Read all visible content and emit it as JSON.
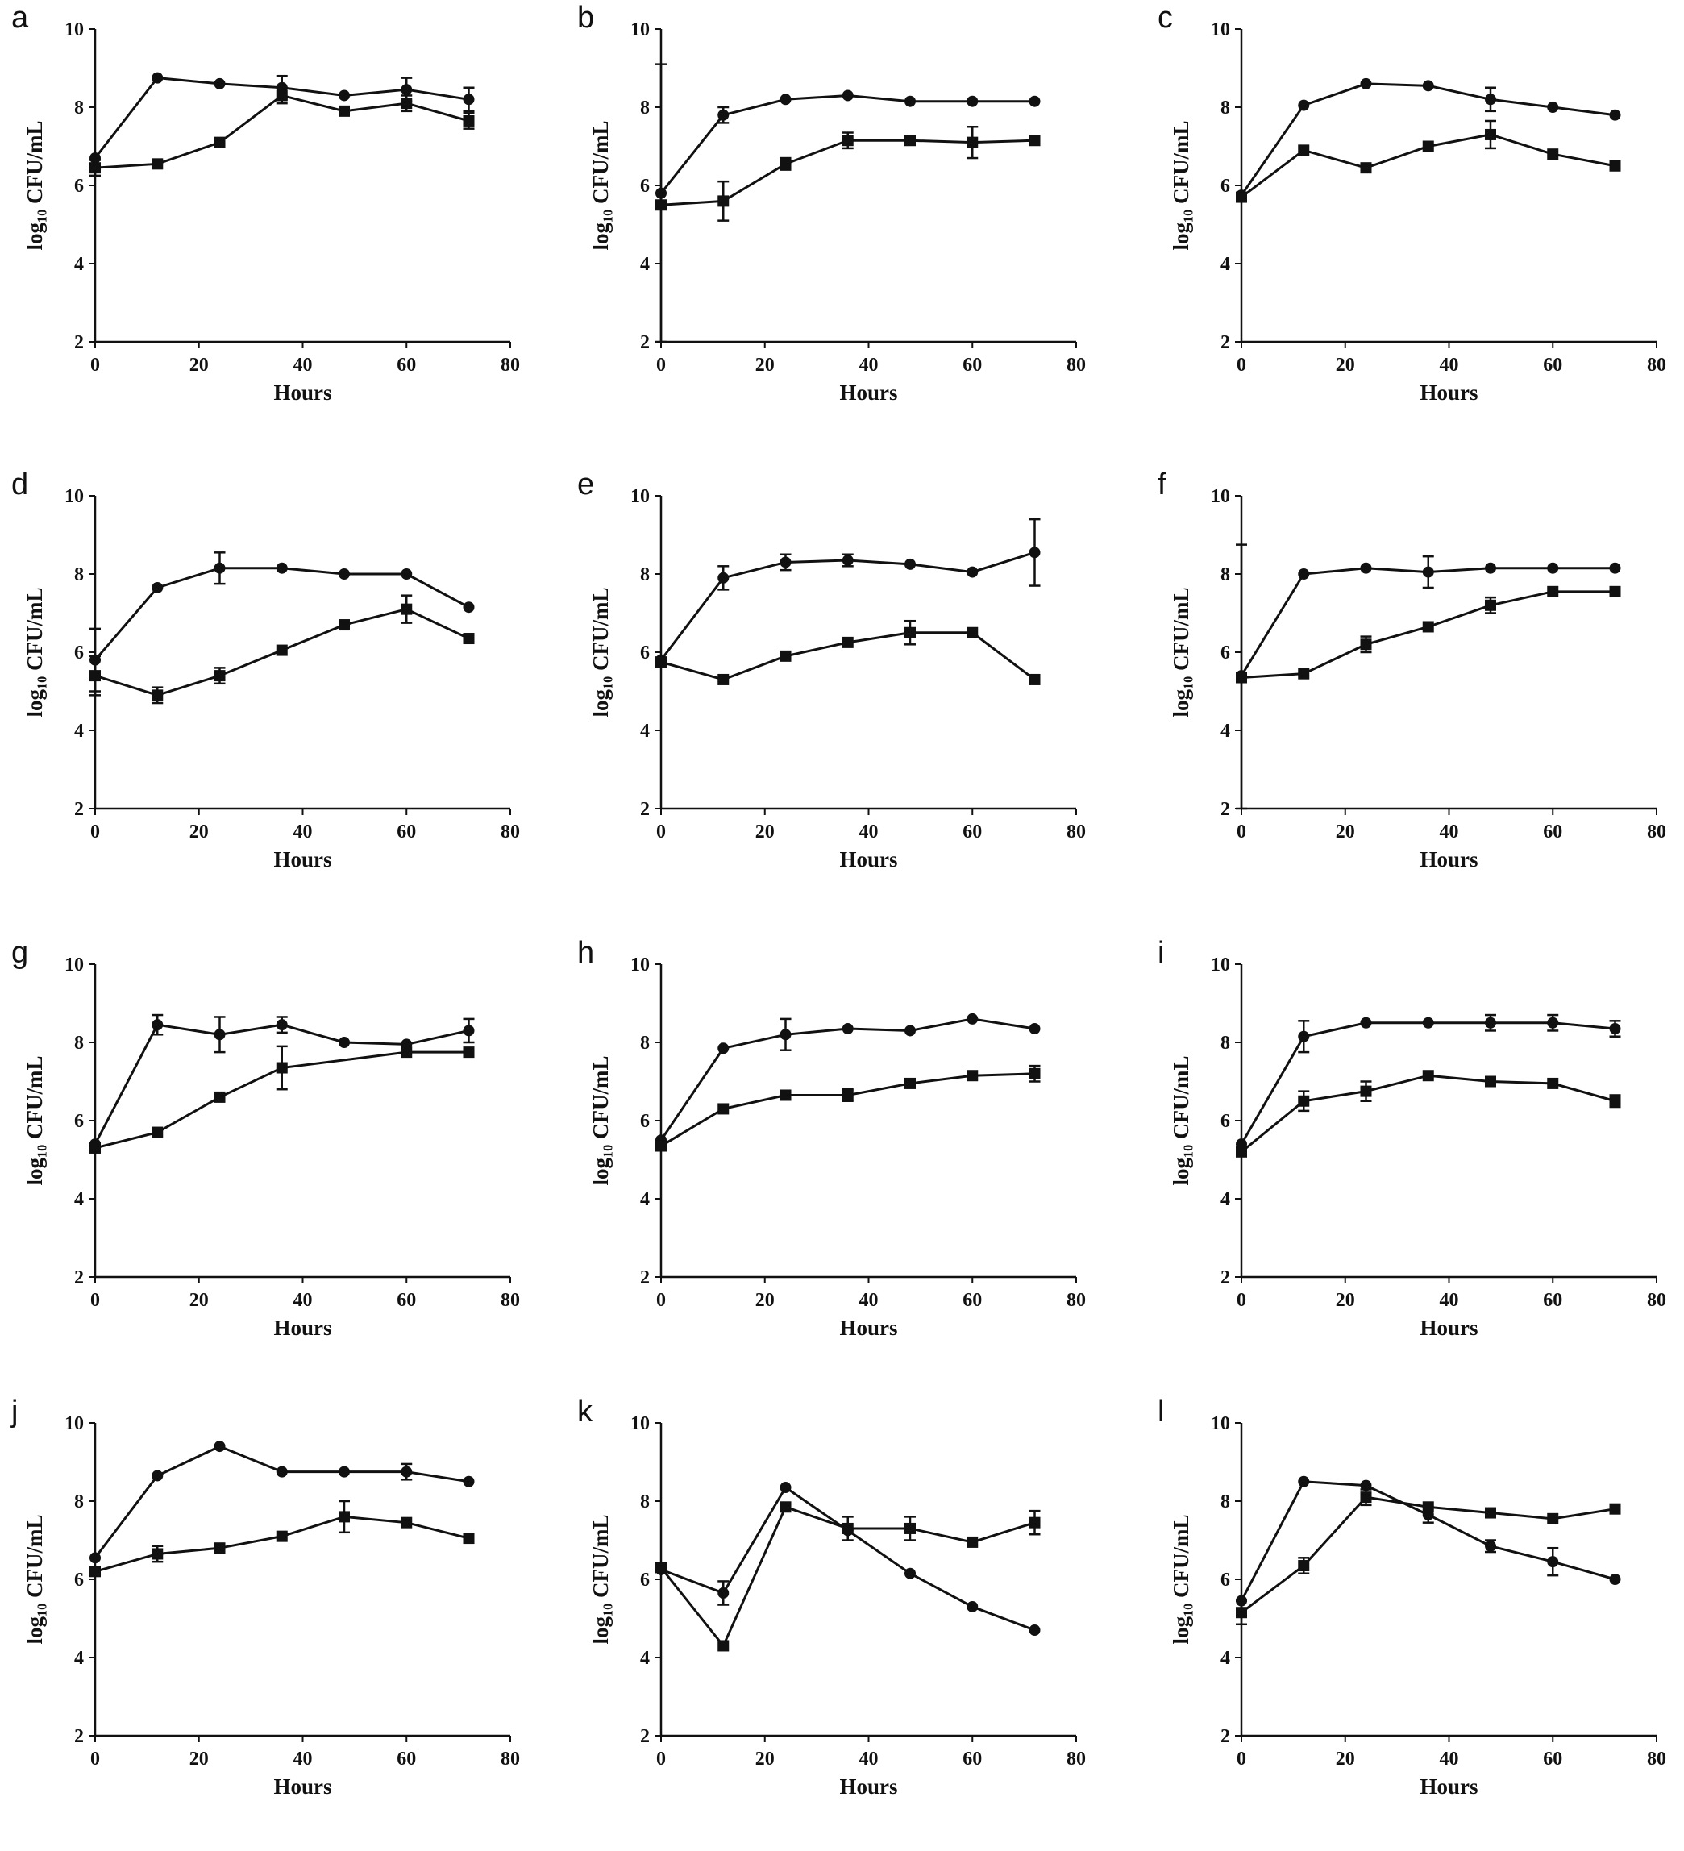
{
  "figure": {
    "ylabel": "log₁₀ CFU/mL",
    "xlabel": "Hours"
  },
  "chart_data": [
    {
      "panel": "a",
      "type": "line",
      "xlabel": "Hours",
      "ylabel": "log₁₀ CFU/mL",
      "xlim": [
        0,
        80
      ],
      "ylim": [
        2,
        10
      ],
      "xticks": [
        0,
        20,
        40,
        60,
        80
      ],
      "yticks": [
        2,
        4,
        6,
        8,
        10
      ],
      "x": [
        0,
        12,
        24,
        36,
        48,
        60,
        72
      ],
      "series": [
        {
          "marker": "circle",
          "values": [
            6.7,
            8.75,
            8.6,
            8.5,
            8.3,
            8.45,
            8.2
          ],
          "errors": [
            0,
            0,
            0,
            0.3,
            0,
            0.3,
            0.3
          ]
        },
        {
          "marker": "square",
          "values": [
            6.45,
            6.55,
            7.1,
            8.3,
            7.9,
            8.1,
            7.65
          ],
          "errors": [
            0.2,
            0,
            0,
            0.2,
            0,
            0.2,
            0.2
          ]
        }
      ]
    },
    {
      "panel": "b",
      "type": "line",
      "xlabel": "Hours",
      "ylabel": "log₁₀ CFU/mL",
      "xlim": [
        0,
        80
      ],
      "ylim": [
        2,
        10
      ],
      "xticks": [
        0,
        20,
        40,
        60,
        80
      ],
      "yticks": [
        2,
        4,
        6,
        8,
        10
      ],
      "x": [
        0,
        12,
        24,
        36,
        48,
        60,
        72
      ],
      "series": [
        {
          "marker": "circle",
          "values": [
            5.8,
            7.8,
            8.2,
            8.3,
            8.15,
            8.15,
            8.15
          ],
          "errors": [
            0,
            0.2,
            0,
            0,
            0,
            0,
            0
          ]
        },
        {
          "marker": "square",
          "values": [
            5.5,
            5.6,
            6.55,
            7.15,
            7.15,
            7.1,
            7.15
          ],
          "errors": [
            3.6,
            0.5,
            0.15,
            0.2,
            0,
            0.4,
            0
          ]
        }
      ]
    },
    {
      "panel": "c",
      "type": "line",
      "xlabel": "Hours",
      "ylabel": "log₁₀ CFU/mL",
      "xlim": [
        0,
        80
      ],
      "ylim": [
        2,
        10
      ],
      "xticks": [
        0,
        20,
        40,
        60,
        80
      ],
      "yticks": [
        2,
        4,
        6,
        8,
        10
      ],
      "x": [
        0,
        12,
        24,
        36,
        48,
        60,
        72
      ],
      "series": [
        {
          "marker": "circle",
          "values": [
            5.75,
            8.05,
            8.6,
            8.55,
            8.2,
            8.0,
            7.8
          ],
          "errors": [
            0,
            0,
            0,
            0,
            0.3,
            0,
            0
          ]
        },
        {
          "marker": "square",
          "values": [
            5.7,
            6.9,
            6.45,
            7.0,
            7.3,
            6.8,
            6.5
          ],
          "errors": [
            0,
            0,
            0,
            0,
            0.35,
            0,
            0
          ]
        }
      ]
    },
    {
      "panel": "d",
      "type": "line",
      "xlabel": "Hours",
      "ylabel": "log₁₀ CFU/mL",
      "xlim": [
        0,
        80
      ],
      "ylim": [
        2,
        10
      ],
      "xticks": [
        0,
        20,
        40,
        60,
        80
      ],
      "yticks": [
        2,
        4,
        6,
        8,
        10
      ],
      "x": [
        0,
        12,
        24,
        36,
        48,
        60,
        72
      ],
      "series": [
        {
          "marker": "circle",
          "values": [
            5.8,
            7.65,
            8.15,
            8.15,
            8.0,
            8.0,
            7.15
          ],
          "errors": [
            0.8,
            0,
            0.4,
            0,
            0,
            0,
            0
          ]
        },
        {
          "marker": "square",
          "values": [
            5.4,
            4.9,
            5.4,
            6.05,
            6.7,
            7.1,
            6.35
          ],
          "errors": [
            0.5,
            0.2,
            0.2,
            0,
            0,
            0.35,
            0
          ]
        }
      ]
    },
    {
      "panel": "e",
      "type": "line",
      "xlabel": "Hours",
      "ylabel": "log₁₀ CFU/mL",
      "xlim": [
        0,
        80
      ],
      "ylim": [
        2,
        10
      ],
      "xticks": [
        0,
        20,
        40,
        60,
        80
      ],
      "yticks": [
        2,
        4,
        6,
        8,
        10
      ],
      "x": [
        0,
        12,
        24,
        36,
        48,
        60,
        72
      ],
      "series": [
        {
          "marker": "circle",
          "values": [
            5.8,
            7.9,
            8.3,
            8.35,
            8.25,
            8.05,
            8.55
          ],
          "errors": [
            0,
            0.3,
            0.2,
            0.15,
            0,
            0,
            0.85
          ]
        },
        {
          "marker": "square",
          "values": [
            5.75,
            5.3,
            5.9,
            6.25,
            6.5,
            6.5,
            5.3
          ],
          "errors": [
            0,
            0,
            0,
            0,
            0.3,
            0,
            0
          ]
        }
      ]
    },
    {
      "panel": "f",
      "type": "line",
      "xlabel": "Hours",
      "ylabel": "log₁₀ CFU/mL",
      "xlim": [
        0,
        80
      ],
      "ylim": [
        2,
        10
      ],
      "xticks": [
        0,
        20,
        40,
        60,
        80
      ],
      "yticks": [
        2,
        4,
        6,
        8,
        10
      ],
      "x": [
        0,
        12,
        24,
        36,
        48,
        60,
        72
      ],
      "series": [
        {
          "marker": "circle",
          "values": [
            5.4,
            8.0,
            8.15,
            8.05,
            8.15,
            8.15,
            8.15
          ],
          "errors": [
            0,
            0,
            0,
            0.4,
            0,
            0,
            0
          ]
        },
        {
          "marker": "square",
          "values": [
            5.35,
            5.45,
            6.2,
            6.65,
            7.2,
            7.55,
            7.55
          ],
          "errors": [
            3.4,
            0,
            0.2,
            0,
            0.2,
            0,
            0
          ]
        }
      ]
    },
    {
      "panel": "g",
      "type": "line",
      "xlabel": "Hours",
      "ylabel": "log₁₀ CFU/mL",
      "xlim": [
        0,
        80
      ],
      "ylim": [
        2,
        10
      ],
      "xticks": [
        0,
        20,
        40,
        60,
        80
      ],
      "yticks": [
        2,
        4,
        6,
        8,
        10
      ],
      "x": [
        0,
        12,
        24,
        36,
        48,
        60,
        72
      ],
      "series": [
        {
          "marker": "circle",
          "values": [
            5.4,
            8.45,
            8.2,
            8.45,
            8.0,
            7.95,
            8.3
          ],
          "errors": [
            0,
            0.25,
            0.45,
            0.2,
            0,
            0,
            0.3
          ]
        },
        {
          "marker": "square",
          "values": [
            5.3,
            5.7,
            6.6,
            7.35,
            null,
            7.75,
            7.75
          ],
          "errors": [
            0,
            0,
            0,
            0.55,
            0,
            0,
            0
          ]
        }
      ]
    },
    {
      "panel": "h",
      "type": "line",
      "xlabel": "Hours",
      "ylabel": "log₁₀ CFU/mL",
      "xlim": [
        0,
        80
      ],
      "ylim": [
        2,
        10
      ],
      "xticks": [
        0,
        20,
        40,
        60,
        80
      ],
      "yticks": [
        2,
        4,
        6,
        8,
        10
      ],
      "x": [
        0,
        12,
        24,
        36,
        48,
        60,
        72
      ],
      "series": [
        {
          "marker": "circle",
          "values": [
            5.5,
            7.85,
            8.2,
            8.35,
            8.3,
            8.6,
            8.35
          ],
          "errors": [
            0,
            0,
            0.4,
            0,
            0,
            0,
            0
          ]
        },
        {
          "marker": "square",
          "values": [
            5.35,
            6.3,
            6.65,
            6.65,
            6.95,
            7.15,
            7.2
          ],
          "errors": [
            0,
            0,
            0,
            0.15,
            0,
            0,
            0.2
          ]
        }
      ]
    },
    {
      "panel": "i",
      "type": "line",
      "xlabel": "Hours",
      "ylabel": "log₁₀ CFU/mL",
      "xlim": [
        0,
        80
      ],
      "ylim": [
        2,
        10
      ],
      "xticks": [
        0,
        20,
        40,
        60,
        80
      ],
      "yticks": [
        2,
        4,
        6,
        8,
        10
      ],
      "x": [
        0,
        12,
        24,
        36,
        48,
        60,
        72
      ],
      "series": [
        {
          "marker": "circle",
          "values": [
            5.4,
            8.15,
            8.5,
            8.5,
            8.5,
            8.5,
            8.35
          ],
          "errors": [
            0,
            0.4,
            0,
            0,
            0.2,
            0.2,
            0.2
          ]
        },
        {
          "marker": "square",
          "values": [
            5.2,
            6.5,
            6.75,
            7.15,
            7.0,
            6.95,
            6.5
          ],
          "errors": [
            0,
            0.25,
            0.25,
            0,
            0,
            0,
            0.15
          ]
        }
      ]
    },
    {
      "panel": "j",
      "type": "line",
      "xlabel": "Hours",
      "ylabel": "log₁₀ CFU/mL",
      "xlim": [
        0,
        80
      ],
      "ylim": [
        2,
        10
      ],
      "xticks": [
        0,
        20,
        40,
        60,
        80
      ],
      "yticks": [
        2,
        4,
        6,
        8,
        10
      ],
      "x": [
        0,
        12,
        24,
        36,
        48,
        60,
        72
      ],
      "series": [
        {
          "marker": "circle",
          "values": [
            6.55,
            8.65,
            9.4,
            8.75,
            8.75,
            8.75,
            8.5
          ],
          "errors": [
            0,
            0,
            0,
            0,
            0,
            0.2,
            0
          ]
        },
        {
          "marker": "square",
          "values": [
            6.2,
            6.65,
            6.8,
            7.1,
            7.6,
            7.45,
            7.05
          ],
          "errors": [
            0,
            0.2,
            0,
            0,
            0.4,
            0,
            0
          ]
        }
      ]
    },
    {
      "panel": "k",
      "type": "line",
      "xlabel": "Hours",
      "ylabel": "log₁₀ CFU/mL",
      "xlim": [
        0,
        80
      ],
      "ylim": [
        2,
        10
      ],
      "xticks": [
        0,
        20,
        40,
        60,
        80
      ],
      "yticks": [
        2,
        4,
        6,
        8,
        10
      ],
      "x": [
        0,
        12,
        24,
        36,
        48,
        60,
        72
      ],
      "series": [
        {
          "marker": "circle",
          "values": [
            6.25,
            5.65,
            8.35,
            7.25,
            6.15,
            5.3,
            4.7
          ],
          "errors": [
            0,
            0.3,
            0,
            0,
            0,
            0,
            0
          ]
        },
        {
          "marker": "square",
          "values": [
            6.3,
            4.3,
            7.85,
            7.3,
            7.3,
            6.95,
            7.45
          ],
          "errors": [
            0,
            0,
            0,
            0.3,
            0.3,
            0,
            0.3
          ]
        }
      ]
    },
    {
      "panel": "l",
      "type": "line",
      "xlabel": "Hours",
      "ylabel": "log₁₀ CFU/mL",
      "xlim": [
        0,
        80
      ],
      "ylim": [
        2,
        10
      ],
      "xticks": [
        0,
        20,
        40,
        60,
        80
      ],
      "yticks": [
        2,
        4,
        6,
        8,
        10
      ],
      "x": [
        0,
        12,
        24,
        36,
        48,
        60,
        72
      ],
      "series": [
        {
          "marker": "circle",
          "values": [
            5.45,
            8.5,
            8.4,
            7.65,
            6.85,
            6.45,
            6.0
          ],
          "errors": [
            0,
            0,
            0,
            0.2,
            0.15,
            0.35,
            0
          ]
        },
        {
          "marker": "square",
          "values": [
            5.15,
            6.35,
            8.1,
            7.85,
            7.7,
            7.55,
            7.8
          ],
          "errors": [
            0.3,
            0.2,
            0.2,
            0,
            0,
            0,
            0
          ]
        }
      ]
    }
  ]
}
